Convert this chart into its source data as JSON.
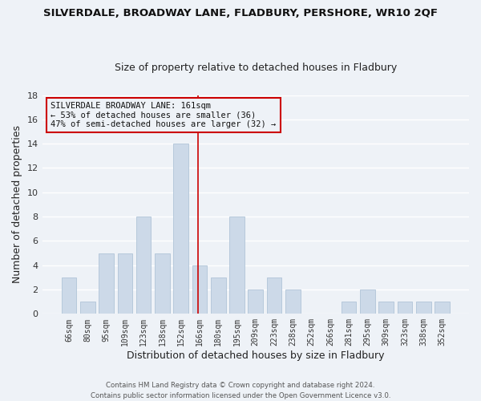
{
  "title": "SILVERDALE, BROADWAY LANE, FLADBURY, PERSHORE, WR10 2QF",
  "subtitle": "Size of property relative to detached houses in Fladbury",
  "xlabel": "Distribution of detached houses by size in Fladbury",
  "ylabel": "Number of detached properties",
  "bar_color": "#ccd9e8",
  "bar_edge_color": "#b0c4d8",
  "categories": [
    "66sqm",
    "80sqm",
    "95sqm",
    "109sqm",
    "123sqm",
    "138sqm",
    "152sqm",
    "166sqm",
    "180sqm",
    "195sqm",
    "209sqm",
    "223sqm",
    "238sqm",
    "252sqm",
    "266sqm",
    "281sqm",
    "295sqm",
    "309sqm",
    "323sqm",
    "338sqm",
    "352sqm"
  ],
  "values": [
    3,
    1,
    5,
    5,
    8,
    5,
    14,
    4,
    3,
    8,
    2,
    3,
    2,
    0,
    0,
    1,
    2,
    1,
    1,
    1,
    1
  ],
  "ylim": [
    0,
    18
  ],
  "yticks": [
    0,
    2,
    4,
    6,
    8,
    10,
    12,
    14,
    16,
    18
  ],
  "red_line_index": 7,
  "marker_color": "#cc0000",
  "annotation_title": "SILVERDALE BROADWAY LANE: 161sqm",
  "annotation_line1": "← 53% of detached houses are smaller (36)",
  "annotation_line2": "47% of semi-detached houses are larger (32) →",
  "annotation_box_edge": "#cc0000",
  "footer_line1": "Contains HM Land Registry data © Crown copyright and database right 2024.",
  "footer_line2": "Contains public sector information licensed under the Open Government Licence v3.0.",
  "background_color": "#eef2f7",
  "grid_color": "#ffffff",
  "fig_width": 6.0,
  "fig_height": 5.0
}
